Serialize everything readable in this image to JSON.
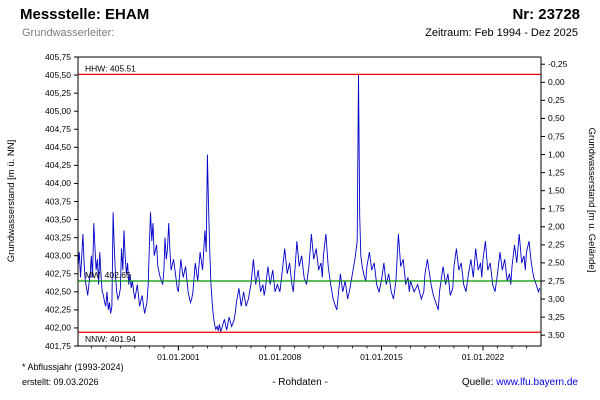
{
  "header": {
    "station_label": "Messstelle: EHAM",
    "number_label": "Nr: 23728",
    "aquifer_label": "Grundwasserleiter:",
    "period_label": "Zeitraum: Feb 1994 - Dez 2025"
  },
  "footer": {
    "note": "* Abflussjahr (1993-2024)",
    "created": "erstellt: 09.03.2026",
    "center": "- Rohdaten -",
    "source_label": "Quelle:",
    "source_link": "www.lfu.bayern.de"
  },
  "chart_data": {
    "type": "line",
    "title": "",
    "x_range": [
      1994.08,
      2026.0
    ],
    "ylim": [
      401.75,
      405.75
    ],
    "grid": false,
    "left_axis": {
      "label": "Grundwasserstand [m ü. NN]",
      "max": 405.75,
      "step": 0.25,
      "tick_labels": [
        "405,75",
        "405,50",
        "405,25",
        "405,00",
        "404,75",
        "404,50",
        "404,25",
        "404,00",
        "403,75",
        "403,50",
        "403,25",
        "403,00",
        "402,75",
        "402,50",
        "402,25",
        "402,00",
        "401,75"
      ]
    },
    "right_axis": {
      "label": "Grundwasserstand [m u. Gelände]",
      "min": -0.25,
      "step": 0.25,
      "ground_level": 405.4,
      "tick_labels": [
        "-0,25",
        "0,00",
        "0,25",
        "0,50",
        "0,75",
        "1,00",
        "1,25",
        "1,50",
        "1,75",
        "2,00",
        "2,25",
        "2,50",
        "2,75",
        "3,00",
        "3,25",
        "3,50"
      ]
    },
    "x_ticks": [
      {
        "t": 2001.0,
        "label": "01.01.2001"
      },
      {
        "t": 2008.0,
        "label": "01.01.2008"
      },
      {
        "t": 2015.0,
        "label": "01.01.2015"
      },
      {
        "t": 2022.0,
        "label": "01.01.2022"
      }
    ],
    "ref_lines": [
      {
        "name": "HHW",
        "label": "HHW: 405.51",
        "value": 405.51,
        "color": "#ee0000",
        "label_pos": "above"
      },
      {
        "name": "MW",
        "label": "MW: 402.65",
        "value": 402.65,
        "color": "#009000",
        "label_pos": "above"
      },
      {
        "name": "NNW",
        "label": "NNW: 401.94",
        "value": 401.94,
        "color": "#ee0000",
        "label_pos": "below"
      }
    ],
    "series": [
      {
        "name": "Grundwasserstand Rohdaten",
        "color": "#0000c8",
        "points": [
          [
            1994.08,
            402.85
          ],
          [
            1994.17,
            403.05
          ],
          [
            1994.25,
            402.7
          ],
          [
            1994.33,
            402.95
          ],
          [
            1994.42,
            403.3
          ],
          [
            1994.5,
            402.9
          ],
          [
            1994.58,
            402.65
          ],
          [
            1994.67,
            402.55
          ],
          [
            1994.75,
            402.45
          ],
          [
            1994.83,
            402.6
          ],
          [
            1994.92,
            402.75
          ],
          [
            1995.0,
            403.0
          ],
          [
            1995.08,
            402.7
          ],
          [
            1995.17,
            403.45
          ],
          [
            1995.25,
            403.1
          ],
          [
            1995.33,
            402.8
          ],
          [
            1995.42,
            402.95
          ],
          [
            1995.5,
            402.6
          ],
          [
            1995.58,
            403.05
          ],
          [
            1995.67,
            402.7
          ],
          [
            1995.75,
            402.5
          ],
          [
            1995.83,
            402.45
          ],
          [
            1995.92,
            402.35
          ],
          [
            1996.0,
            402.3
          ],
          [
            1996.08,
            402.5
          ],
          [
            1996.17,
            402.25
          ],
          [
            1996.25,
            402.35
          ],
          [
            1996.33,
            402.2
          ],
          [
            1996.42,
            402.3
          ],
          [
            1996.5,
            403.6
          ],
          [
            1996.58,
            403.1
          ],
          [
            1996.67,
            402.7
          ],
          [
            1996.75,
            402.5
          ],
          [
            1996.83,
            402.4
          ],
          [
            1996.92,
            402.45
          ],
          [
            1997.0,
            402.55
          ],
          [
            1997.08,
            403.1
          ],
          [
            1997.17,
            402.8
          ],
          [
            1997.25,
            403.35
          ],
          [
            1997.33,
            403.0
          ],
          [
            1997.42,
            402.75
          ],
          [
            1997.5,
            402.9
          ],
          [
            1997.58,
            402.6
          ],
          [
            1997.67,
            402.75
          ],
          [
            1997.75,
            402.55
          ],
          [
            1997.83,
            402.65
          ],
          [
            1997.92,
            402.5
          ],
          [
            1998.0,
            402.4
          ],
          [
            1998.17,
            402.6
          ],
          [
            1998.33,
            402.3
          ],
          [
            1998.5,
            402.45
          ],
          [
            1998.67,
            402.2
          ],
          [
            1998.83,
            402.35
          ],
          [
            1998.92,
            402.6
          ],
          [
            1999.0,
            403.15
          ],
          [
            1999.08,
            403.6
          ],
          [
            1999.17,
            403.2
          ],
          [
            1999.25,
            403.45
          ],
          [
            1999.33,
            403.0
          ],
          [
            1999.5,
            403.15
          ],
          [
            1999.58,
            402.85
          ],
          [
            1999.75,
            402.7
          ],
          [
            1999.92,
            402.6
          ],
          [
            2000.0,
            402.8
          ],
          [
            2000.08,
            403.25
          ],
          [
            2000.17,
            402.95
          ],
          [
            2000.25,
            403.1
          ],
          [
            2000.33,
            403.45
          ],
          [
            2000.42,
            403.05
          ],
          [
            2000.5,
            402.8
          ],
          [
            2000.67,
            402.95
          ],
          [
            2000.83,
            402.7
          ],
          [
            2000.92,
            402.55
          ],
          [
            2001.0,
            402.5
          ],
          [
            2001.17,
            402.95
          ],
          [
            2001.33,
            402.7
          ],
          [
            2001.5,
            402.85
          ],
          [
            2001.67,
            402.5
          ],
          [
            2001.83,
            402.35
          ],
          [
            2001.92,
            402.4
          ],
          [
            2002.0,
            402.5
          ],
          [
            2002.17,
            402.9
          ],
          [
            2002.33,
            402.65
          ],
          [
            2002.5,
            403.05
          ],
          [
            2002.67,
            402.8
          ],
          [
            2002.83,
            403.35
          ],
          [
            2002.92,
            403.05
          ],
          [
            2003.0,
            404.4
          ],
          [
            2003.08,
            403.7
          ],
          [
            2003.17,
            403.0
          ],
          [
            2003.25,
            402.6
          ],
          [
            2003.33,
            402.35
          ],
          [
            2003.42,
            402.15
          ],
          [
            2003.5,
            402.05
          ],
          [
            2003.58,
            401.98
          ],
          [
            2003.67,
            402.02
          ],
          [
            2003.75,
            401.96
          ],
          [
            2003.83,
            402.05
          ],
          [
            2003.92,
            401.95
          ],
          [
            2004.0,
            402.0
          ],
          [
            2004.17,
            402.12
          ],
          [
            2004.33,
            401.97
          ],
          [
            2004.5,
            402.15
          ],
          [
            2004.67,
            402.02
          ],
          [
            2004.83,
            402.1
          ],
          [
            2004.92,
            402.2
          ],
          [
            2005.0,
            402.35
          ],
          [
            2005.17,
            402.55
          ],
          [
            2005.33,
            402.3
          ],
          [
            2005.5,
            402.5
          ],
          [
            2005.67,
            402.3
          ],
          [
            2005.83,
            402.4
          ],
          [
            2006.0,
            402.6
          ],
          [
            2006.17,
            402.95
          ],
          [
            2006.33,
            402.6
          ],
          [
            2006.5,
            402.8
          ],
          [
            2006.67,
            402.5
          ],
          [
            2006.83,
            402.6
          ],
          [
            2006.92,
            402.45
          ],
          [
            2007.0,
            402.55
          ],
          [
            2007.17,
            402.85
          ],
          [
            2007.33,
            402.6
          ],
          [
            2007.5,
            402.8
          ],
          [
            2007.67,
            402.5
          ],
          [
            2007.83,
            402.6
          ],
          [
            2008.0,
            402.5
          ],
          [
            2008.17,
            402.8
          ],
          [
            2008.33,
            403.1
          ],
          [
            2008.5,
            402.75
          ],
          [
            2008.67,
            402.9
          ],
          [
            2008.83,
            402.6
          ],
          [
            2008.92,
            402.5
          ],
          [
            2009.0,
            402.7
          ],
          [
            2009.17,
            403.2
          ],
          [
            2009.33,
            402.85
          ],
          [
            2009.5,
            403.0
          ],
          [
            2009.67,
            402.7
          ],
          [
            2009.83,
            402.6
          ],
          [
            2010.0,
            402.85
          ],
          [
            2010.17,
            403.3
          ],
          [
            2010.33,
            402.95
          ],
          [
            2010.5,
            403.1
          ],
          [
            2010.67,
            402.8
          ],
          [
            2010.83,
            402.9
          ],
          [
            2010.92,
            402.7
          ],
          [
            2011.0,
            403.0
          ],
          [
            2011.17,
            403.3
          ],
          [
            2011.33,
            402.85
          ],
          [
            2011.5,
            402.6
          ],
          [
            2011.67,
            402.4
          ],
          [
            2011.83,
            402.3
          ],
          [
            2011.92,
            402.25
          ],
          [
            2012.0,
            402.4
          ],
          [
            2012.17,
            402.75
          ],
          [
            2012.33,
            402.5
          ],
          [
            2012.5,
            402.65
          ],
          [
            2012.67,
            402.4
          ],
          [
            2012.83,
            402.55
          ],
          [
            2013.0,
            402.75
          ],
          [
            2013.17,
            402.95
          ],
          [
            2013.33,
            403.2
          ],
          [
            2013.42,
            405.51
          ],
          [
            2013.5,
            403.55
          ],
          [
            2013.58,
            403.0
          ],
          [
            2013.67,
            402.85
          ],
          [
            2013.83,
            402.7
          ],
          [
            2013.92,
            402.65
          ],
          [
            2014.0,
            402.85
          ],
          [
            2014.17,
            403.05
          ],
          [
            2014.33,
            402.8
          ],
          [
            2014.5,
            402.9
          ],
          [
            2014.67,
            402.6
          ],
          [
            2014.83,
            402.5
          ],
          [
            2015.0,
            402.65
          ],
          [
            2015.17,
            402.9
          ],
          [
            2015.33,
            402.6
          ],
          [
            2015.5,
            402.75
          ],
          [
            2015.67,
            402.5
          ],
          [
            2015.83,
            402.4
          ],
          [
            2016.0,
            402.65
          ],
          [
            2016.17,
            403.3
          ],
          [
            2016.33,
            402.85
          ],
          [
            2016.5,
            402.95
          ],
          [
            2016.67,
            402.6
          ],
          [
            2016.83,
            402.7
          ],
          [
            2016.92,
            402.5
          ],
          [
            2017.0,
            402.65
          ],
          [
            2017.25,
            402.5
          ],
          [
            2017.5,
            402.6
          ],
          [
            2017.75,
            402.4
          ],
          [
            2017.92,
            402.5
          ],
          [
            2018.0,
            402.75
          ],
          [
            2018.17,
            402.95
          ],
          [
            2018.42,
            402.6
          ],
          [
            2018.58,
            402.45
          ],
          [
            2018.75,
            402.35
          ],
          [
            2018.92,
            402.25
          ],
          [
            2019.0,
            402.5
          ],
          [
            2019.25,
            402.85
          ],
          [
            2019.42,
            402.6
          ],
          [
            2019.58,
            402.75
          ],
          [
            2019.75,
            402.45
          ],
          [
            2019.92,
            402.55
          ],
          [
            2020.0,
            402.85
          ],
          [
            2020.17,
            403.1
          ],
          [
            2020.33,
            402.8
          ],
          [
            2020.5,
            402.9
          ],
          [
            2020.67,
            402.6
          ],
          [
            2020.83,
            402.5
          ],
          [
            2021.0,
            402.75
          ],
          [
            2021.17,
            402.95
          ],
          [
            2021.33,
            402.7
          ],
          [
            2021.5,
            403.1
          ],
          [
            2021.67,
            402.8
          ],
          [
            2021.83,
            402.9
          ],
          [
            2021.92,
            402.7
          ],
          [
            2022.0,
            402.95
          ],
          [
            2022.17,
            403.2
          ],
          [
            2022.33,
            402.8
          ],
          [
            2022.5,
            402.9
          ],
          [
            2022.67,
            402.6
          ],
          [
            2022.83,
            402.5
          ],
          [
            2023.0,
            402.75
          ],
          [
            2023.17,
            403.05
          ],
          [
            2023.33,
            402.8
          ],
          [
            2023.5,
            402.95
          ],
          [
            2023.67,
            402.65
          ],
          [
            2023.83,
            402.75
          ],
          [
            2023.92,
            402.6
          ],
          [
            2024.0,
            402.85
          ],
          [
            2024.17,
            403.15
          ],
          [
            2024.33,
            402.9
          ],
          [
            2024.5,
            403.3
          ],
          [
            2024.67,
            402.9
          ],
          [
            2024.83,
            403.0
          ],
          [
            2024.92,
            402.8
          ],
          [
            2025.0,
            403.05
          ],
          [
            2025.17,
            403.2
          ],
          [
            2025.33,
            402.9
          ],
          [
            2025.5,
            402.7
          ],
          [
            2025.67,
            402.6
          ],
          [
            2025.83,
            402.5
          ],
          [
            2025.92,
            402.55
          ]
        ]
      }
    ]
  }
}
